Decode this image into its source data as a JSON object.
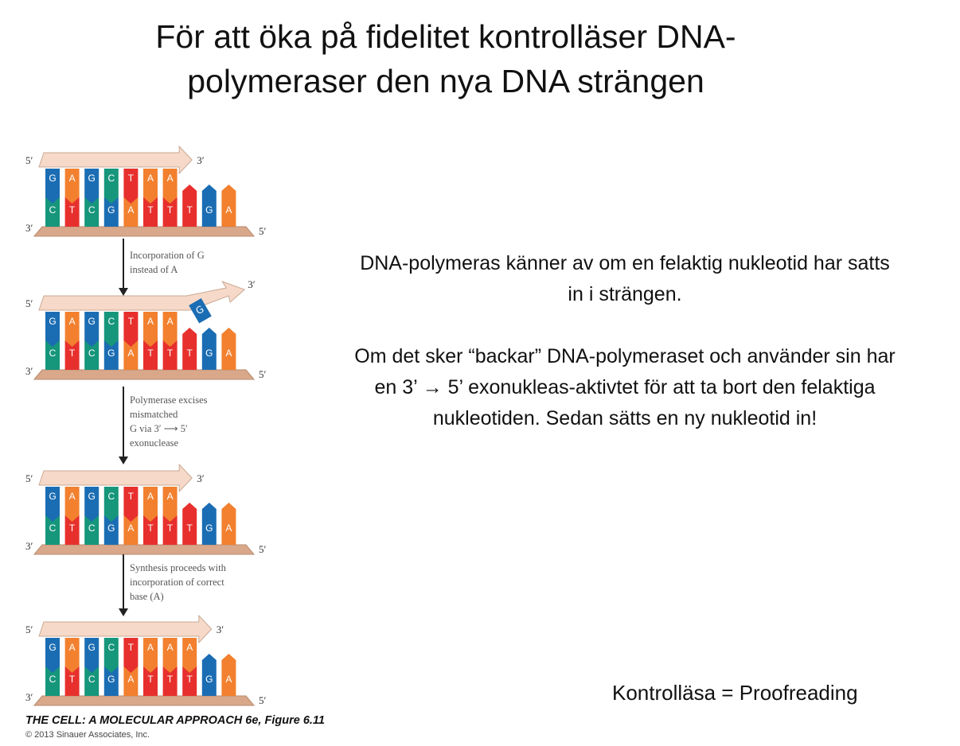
{
  "title": [
    "För att öka på fidelitet kontrolläser DNA-",
    "polymeraser den nya DNA strängen"
  ],
  "body": [
    "DNA-polymeras känner av om en felaktig nukleotid har satts in i strängen.",
    "Om det sker “backar” DNA-polymeraset och använder sin har en 3’ → 5’ exonukleas-aktivtet för att ta bort den felaktiga nukleotiden. Sedan sätts en ny nukleotid in!"
  ],
  "footer_note": "Kontrolläsa = Proofreading",
  "figure": {
    "colors": {
      "G": "#1b6db3",
      "C": "#16967b",
      "A": "#f2802e",
      "T": "#e7302d",
      "strand": "#f6d9c8",
      "backbone": "#d9a88a"
    },
    "end_labels": {
      "five": "5′",
      "three": "3′"
    },
    "panels": [
      {
        "top": [
          "G",
          "A",
          "G",
          "C",
          "T",
          "A",
          "A"
        ],
        "bottom": [
          "C",
          "T",
          "C",
          "G",
          "A",
          "T",
          "T",
          "T",
          "G",
          "A"
        ],
        "mismatch": ""
      },
      {
        "top": [
          "G",
          "A",
          "G",
          "C",
          "T",
          "A",
          "A"
        ],
        "bottom": [
          "C",
          "T",
          "C",
          "G",
          "A",
          "T",
          "T",
          "T",
          "G",
          "A"
        ],
        "mismatch": "G"
      },
      {
        "top": [
          "G",
          "A",
          "G",
          "C",
          "T",
          "A",
          "A"
        ],
        "bottom": [
          "C",
          "T",
          "C",
          "G",
          "A",
          "T",
          "T",
          "T",
          "G",
          "A"
        ],
        "mismatch": ""
      },
      {
        "top": [
          "G",
          "A",
          "G",
          "C",
          "T",
          "A",
          "A",
          "A"
        ],
        "bottom": [
          "C",
          "T",
          "C",
          "G",
          "A",
          "T",
          "T",
          "T",
          "G",
          "A"
        ],
        "mismatch": ""
      }
    ],
    "steps": [
      "Incorporation of G\ninstead of A",
      "Polymerase excises\nmismatched\nG via 3′ ⟶ 5′\nexonuclease",
      "Synthesis proceeds with\nincorporation of correct\nbase (A)"
    ],
    "credit": "THE CELL: A MOLECULAR APPROACH 6e, Figure 6.11",
    "copyright": "© 2013 Sinauer Associates, Inc."
  }
}
